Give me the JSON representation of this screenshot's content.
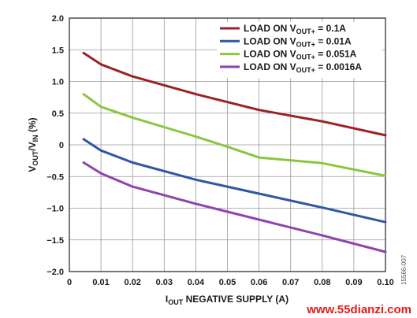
{
  "chart_data": {
    "type": "line",
    "xlabel": "I_OUT NEGATIVE SUPPLY (A)",
    "ylabel": "V_OUT/V_IN (%)",
    "xlim": [
      0,
      0.1
    ],
    "ylim": [
      -2.0,
      2.0
    ],
    "x_ticks": [
      "0",
      "0.01",
      "0.02",
      "0.03",
      "0.04",
      "0.05",
      "0.06",
      "0.07",
      "0.08",
      "0.09",
      "0.10"
    ],
    "y_ticks": [
      "2.0",
      "1.5",
      "1.0",
      "0.5",
      "0",
      "−0.5",
      "−1.0",
      "−1.5",
      "−2.0"
    ],
    "grid": true,
    "legend_position": "top-right",
    "series": [
      {
        "name": "LOAD ON V_OUT+ = 0.1A",
        "color": "#9b2226",
        "x": [
          0.0045,
          0.01,
          0.02,
          0.04,
          0.06,
          0.08,
          0.1
        ],
        "y": [
          1.45,
          1.27,
          1.08,
          0.8,
          0.55,
          0.37,
          0.15
        ]
      },
      {
        "name": "LOAD ON V_OUT+ = 0.01A",
        "color": "#2f57a4",
        "x": [
          0.0045,
          0.01,
          0.02,
          0.04,
          0.06,
          0.08,
          0.1
        ],
        "y": [
          0.09,
          -0.09,
          -0.28,
          -0.55,
          -0.77,
          -0.99,
          -1.22
        ]
      },
      {
        "name": "LOAD ON V_OUT+ = 0.051A",
        "color": "#8cc63f",
        "x": [
          0.0045,
          0.01,
          0.02,
          0.03,
          0.04,
          0.05,
          0.06,
          0.08,
          0.1
        ],
        "y": [
          0.8,
          0.6,
          0.43,
          0.28,
          0.13,
          -0.03,
          -0.2,
          -0.29,
          -0.49
        ]
      },
      {
        "name": "LOAD ON V_OUT+ = 0.0016A",
        "color": "#8e44ad",
        "x": [
          0.0045,
          0.01,
          0.02,
          0.04,
          0.06,
          0.08,
          0.1
        ],
        "y": [
          -0.28,
          -0.45,
          -0.66,
          -0.93,
          -1.18,
          -1.43,
          -1.69
        ]
      }
    ]
  },
  "fig_id": "15566-007",
  "watermark": "www.55dianzi.com"
}
